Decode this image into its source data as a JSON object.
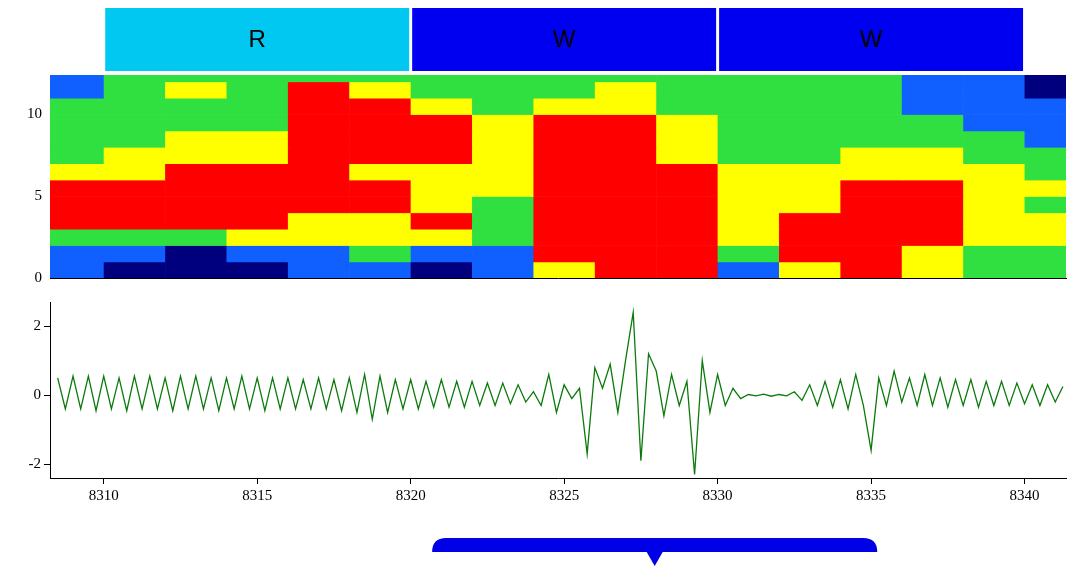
{
  "chart_data": [
    {
      "type": "heatmap",
      "xlim": [
        8308.25,
        8341.35
      ],
      "ylim": [
        0,
        12.4
      ],
      "yticks": [
        0,
        5,
        10
      ],
      "tick_labels": "y",
      "grid": false,
      "zlim": [
        0,
        4
      ],
      "colors": [
        "#00007f",
        "#1060ff",
        "#30e040",
        "#ffff00",
        "#ff0000"
      ],
      "x_bins": [
        8308,
        8310,
        8312,
        8314,
        8316,
        8318,
        8320,
        8322,
        8324,
        8326,
        8328,
        8330,
        8332,
        8334,
        8336,
        8338,
        8340,
        8342
      ],
      "y_bins": [
        0,
        1,
        2,
        3,
        4,
        5,
        6,
        7,
        8,
        9,
        10,
        11,
        12,
        13
      ],
      "cells": [
        [
          1,
          0,
          0,
          0,
          1,
          1,
          0,
          1,
          3,
          4,
          4,
          1,
          3,
          4,
          3,
          2,
          2
        ],
        [
          1,
          1,
          0,
          1,
          1,
          2,
          1,
          1,
          4,
          4,
          4,
          2,
          4,
          4,
          3,
          2,
          2
        ],
        [
          2,
          2,
          2,
          3,
          3,
          3,
          3,
          2,
          4,
          4,
          4,
          3,
          4,
          4,
          4,
          3,
          3
        ],
        [
          4,
          4,
          4,
          4,
          3,
          3,
          4,
          2,
          4,
          4,
          4,
          3,
          4,
          4,
          4,
          3,
          3
        ],
        [
          4,
          4,
          4,
          4,
          4,
          4,
          3,
          2,
          4,
          4,
          4,
          3,
          3,
          4,
          4,
          3,
          2
        ],
        [
          4,
          4,
          4,
          4,
          4,
          4,
          3,
          3,
          4,
          4,
          4,
          3,
          3,
          4,
          4,
          3,
          3
        ],
        [
          3,
          3,
          4,
          4,
          4,
          3,
          3,
          3,
          4,
          4,
          4,
          3,
          3,
          3,
          3,
          3,
          2
        ],
        [
          2,
          3,
          3,
          3,
          4,
          4,
          4,
          3,
          4,
          4,
          3,
          2,
          2,
          3,
          3,
          2,
          2
        ],
        [
          2,
          2,
          3,
          3,
          4,
          4,
          4,
          3,
          4,
          4,
          3,
          2,
          2,
          2,
          2,
          2,
          1
        ],
        [
          2,
          2,
          2,
          2,
          4,
          4,
          4,
          3,
          4,
          4,
          3,
          2,
          2,
          2,
          2,
          1,
          1
        ],
        [
          2,
          2,
          2,
          2,
          4,
          4,
          3,
          2,
          3,
          3,
          2,
          2,
          2,
          2,
          1,
          1,
          1
        ],
        [
          1,
          2,
          3,
          2,
          4,
          3,
          2,
          2,
          2,
          3,
          2,
          2,
          2,
          2,
          1,
          1,
          0
        ],
        [
          1,
          2,
          2,
          2,
          2,
          2,
          2,
          2,
          2,
          2,
          2,
          2,
          2,
          2,
          1,
          1,
          0
        ]
      ],
      "segments": [
        {
          "label": "R",
          "start": 8310,
          "end": 8320,
          "color": "#00c8f0"
        },
        {
          "label": "W",
          "start": 8320,
          "end": 8330,
          "color": "#0000f0"
        },
        {
          "label": "W",
          "start": 8330,
          "end": 8340,
          "color": "#0000f0"
        }
      ]
    },
    {
      "type": "line",
      "color": "#0b7a0b",
      "xlim": [
        8308.25,
        8341.35
      ],
      "xticks": [
        8310,
        8315,
        8320,
        8325,
        8330,
        8335,
        8340
      ],
      "ylim": [
        -2.4,
        2.7
      ],
      "yticks": [
        -2,
        0,
        2
      ],
      "grid": false,
      "x": [
        8308.5,
        8308.75,
        8309,
        8309.25,
        8309.5,
        8309.75,
        8310,
        8310.25,
        8310.5,
        8310.75,
        8311,
        8311.25,
        8311.5,
        8311.75,
        8312,
        8312.25,
        8312.5,
        8312.75,
        8313,
        8313.25,
        8313.5,
        8313.75,
        8314,
        8314.25,
        8314.5,
        8314.75,
        8315,
        8315.25,
        8315.5,
        8315.75,
        8316,
        8316.25,
        8316.5,
        8316.75,
        8317,
        8317.25,
        8317.5,
        8317.75,
        8318,
        8318.25,
        8318.5,
        8318.75,
        8319,
        8319.25,
        8319.5,
        8319.75,
        8320,
        8320.25,
        8320.5,
        8320.75,
        8321,
        8321.25,
        8321.5,
        8321.75,
        8322,
        8322.25,
        8322.5,
        8322.75,
        8323,
        8323.25,
        8323.5,
        8323.75,
        8324,
        8324.25,
        8324.5,
        8324.75,
        8325,
        8325.25,
        8325.5,
        8325.75,
        8326,
        8326.25,
        8326.5,
        8326.75,
        8327,
        8327.25,
        8327.5,
        8327.75,
        8328,
        8328.25,
        8328.5,
        8328.75,
        8329,
        8329.25,
        8329.5,
        8329.75,
        8330,
        8330.25,
        8330.5,
        8330.75,
        8331,
        8331.25,
        8331.5,
        8331.75,
        8332,
        8332.25,
        8332.5,
        8332.75,
        8333,
        8333.25,
        8333.5,
        8333.75,
        8334,
        8334.25,
        8334.5,
        8334.75,
        8335,
        8335.25,
        8335.5,
        8335.75,
        8336,
        8336.25,
        8336.5,
        8336.75,
        8337,
        8337.25,
        8337.5,
        8337.75,
        8338,
        8338.25,
        8338.5,
        8338.75,
        8339,
        8339.25,
        8339.5,
        8339.75,
        8340,
        8340.25,
        8340.5,
        8340.75,
        8341,
        8341.25
      ],
      "values": [
        0.5,
        -0.4,
        0.55,
        -0.4,
        0.55,
        -0.45,
        0.55,
        -0.4,
        0.5,
        -0.45,
        0.55,
        -0.4,
        0.55,
        -0.4,
        0.5,
        -0.45,
        0.55,
        -0.4,
        0.55,
        -0.4,
        0.5,
        -0.45,
        0.5,
        -0.4,
        0.55,
        -0.4,
        0.5,
        -0.45,
        0.5,
        -0.4,
        0.5,
        -0.4,
        0.45,
        -0.4,
        0.5,
        -0.4,
        0.45,
        -0.45,
        0.5,
        -0.5,
        0.6,
        -0.7,
        0.55,
        -0.5,
        0.45,
        -0.4,
        0.45,
        -0.4,
        0.4,
        -0.35,
        0.45,
        -0.35,
        0.4,
        -0.35,
        0.4,
        -0.3,
        0.35,
        -0.3,
        0.35,
        -0.25,
        0.3,
        -0.2,
        0.1,
        -0.3,
        0.6,
        -0.5,
        0.3,
        -0.1,
        0.2,
        -1.7,
        0.8,
        0.2,
        0.9,
        -0.5,
        1.0,
        2.4,
        -1.9,
        1.2,
        0.7,
        -0.6,
        0.6,
        -0.3,
        0.4,
        -2.3,
        1.0,
        -0.5,
        0.6,
        -0.3,
        0.2,
        -0.1,
        0.02,
        -0.02,
        0.03,
        -0.03,
        0.02,
        -0.02,
        0.1,
        -0.15,
        0.3,
        -0.3,
        0.4,
        -0.35,
        0.45,
        -0.4,
        0.6,
        -0.3,
        -1.6,
        0.5,
        -0.3,
        0.7,
        -0.2,
        0.5,
        -0.3,
        0.6,
        -0.3,
        0.5,
        -0.35,
        0.45,
        -0.3,
        0.45,
        -0.35,
        0.4,
        -0.3,
        0.4,
        -0.3,
        0.35,
        -0.25,
        0.3,
        -0.3,
        0.3,
        -0.2,
        0.25
      ],
      "bracket": {
        "start": 8320.7,
        "end": 8335.2,
        "color": "#0000e6"
      }
    }
  ]
}
